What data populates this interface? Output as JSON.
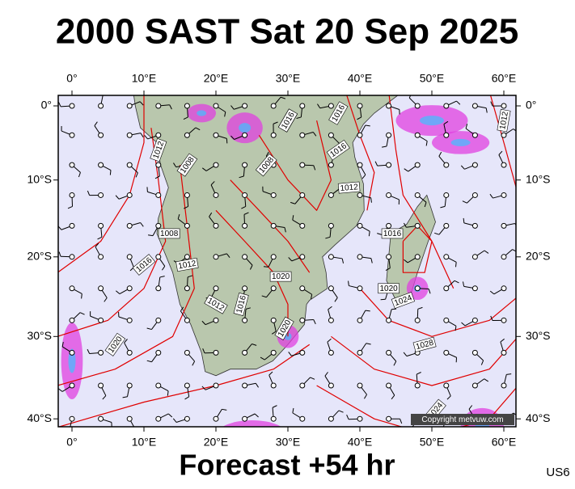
{
  "title": "2000 SAST Sat 20 Sep 2025",
  "footer": "Forecast +54 hr",
  "code": "US6",
  "copyright": "Copyright metvuw.com",
  "axes": {
    "lon_labels": [
      "0°",
      "10°E",
      "20°E",
      "30°E",
      "40°E",
      "50°E",
      "60°E"
    ],
    "lat_labels": [
      "0°",
      "10°S",
      "20°S",
      "30°S",
      "40°S"
    ]
  },
  "isobar_labels": [
    "1012",
    "1008",
    "1016",
    "1016",
    "1012",
    "1008",
    "1012",
    "1016",
    "1008",
    "1016",
    "1012",
    "1020",
    "1012",
    "1016",
    "1020",
    "1020",
    "1020",
    "1024",
    "1028",
    "1024",
    "1016",
    "1012"
  ]
}
